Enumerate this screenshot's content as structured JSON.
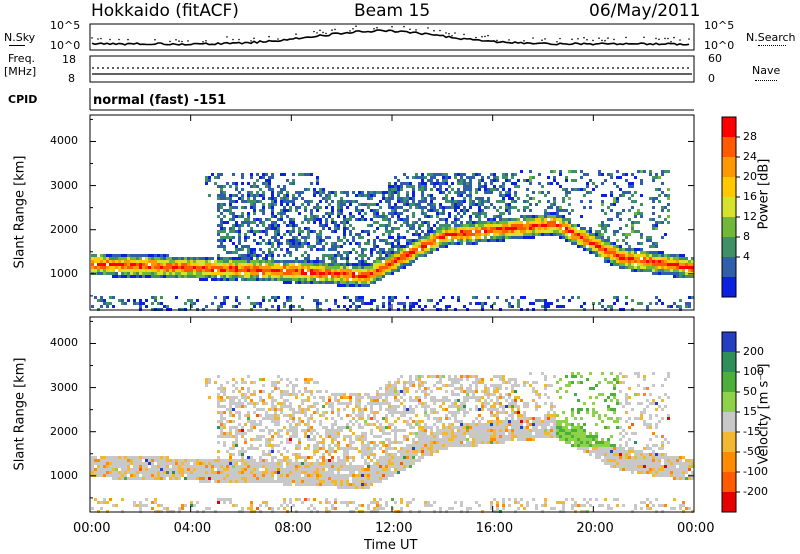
{
  "header": {
    "title": "Hokkaido (fitACF)",
    "beam": "Beam 15",
    "date": "06/May/2011"
  },
  "top_panels": {
    "nsky_label": "N.Sky",
    "nsky_ticks": [
      "10^5",
      "10^0"
    ],
    "nsearch_label": "N.Search",
    "nsearch_ticks": [
      "10^5",
      "10^0"
    ],
    "freq_label": "Freq.",
    "freq_unit": "[MHz]",
    "freq_ticks": [
      "18",
      "8"
    ],
    "nave_label": "Nave",
    "nave_ticks": [
      "60",
      "0"
    ],
    "cpid_label": "CPID",
    "cpid_value": "normal (fast) -151"
  },
  "chart_data": [
    {
      "type": "heatmap",
      "title": "",
      "ylabel": "Slant Range [km]",
      "xlabel": "",
      "ylim": [
        180,
        4600
      ],
      "yticks": [
        "4000",
        "3000",
        "2000",
        "1000"
      ],
      "xticks": [
        "00:00",
        "04:00",
        "08:00",
        "12:00",
        "16:00",
        "20:00",
        "00:00"
      ],
      "colorbar": {
        "label": "Power [dB]",
        "ticks": [
          "28",
          "24",
          "20",
          "16",
          "12",
          "8",
          "4"
        ],
        "colors": [
          "#ff0000",
          "#ff5a00",
          "#ff9800",
          "#ffc800",
          "#d7e22d",
          "#6fb83c",
          "#3f8f67",
          "#2f5fa8",
          "#0a22e0"
        ]
      }
    },
    {
      "type": "heatmap",
      "title": "",
      "ylabel": "Slant Range [km]",
      "xlabel": "Time UT",
      "ylim": [
        180,
        4600
      ],
      "yticks": [
        "4000",
        "3000",
        "2000",
        "1000"
      ],
      "xticks": [
        "00:00",
        "04:00",
        "08:00",
        "12:00",
        "16:00",
        "20:00",
        "00:00"
      ],
      "colorbar": {
        "label": "Velocity [m s⁻¹]",
        "ticks": [
          "200",
          "100",
          "50",
          "15",
          "-15",
          "-50",
          "-100",
          "-200"
        ],
        "colors": [
          "#2440c0",
          "#2f8f5a",
          "#4caf3c",
          "#8ed24a",
          "#c8c8c8",
          "#f2b830",
          "#ff8c00",
          "#ff5a00",
          "#e80000"
        ]
      }
    }
  ]
}
